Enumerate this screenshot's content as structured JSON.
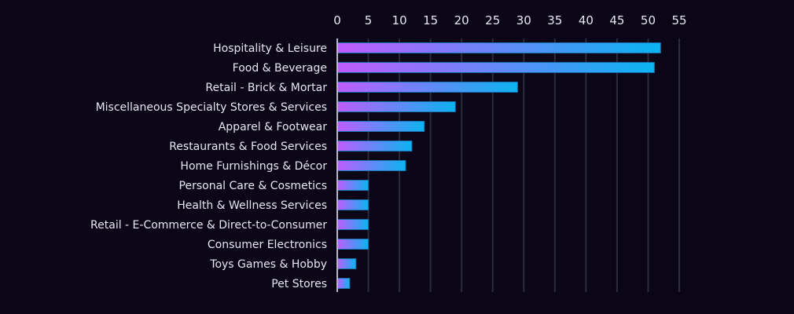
{
  "chart_data": {
    "type": "bar",
    "orientation": "horizontal",
    "title": "",
    "xlabel": "",
    "ylabel": "",
    "xlim": [
      0,
      55
    ],
    "x_ticks": [
      0,
      5,
      10,
      15,
      20,
      25,
      30,
      35,
      40,
      45,
      50,
      55
    ],
    "x_axis_position": "top",
    "grid": true,
    "legend": "none",
    "categories": [
      "Hospitality & Leisure",
      "Food & Beverage",
      "Retail - Brick & Mortar",
      "Miscellaneous Specialty Stores & Services",
      "Apparel & Footwear",
      "Restaurants & Food Services",
      "Home Furnishings & Décor",
      "Personal Care & Cosmetics",
      "Health & Wellness Services",
      "Retail - E-Commerce & Direct-to-Consumer",
      "Consumer Electronics",
      "Toys Games & Hobby",
      "Pet Stores"
    ],
    "values": [
      52,
      51,
      29,
      19,
      14,
      12,
      11,
      5,
      5,
      5,
      5,
      3,
      2
    ],
    "colors": {
      "gradient_start": "#c05cff",
      "gradient_end": "#0ab4f0",
      "background": "#0a0618",
      "gridline": "#2c2a3e",
      "text": "#e8e6f0"
    }
  }
}
